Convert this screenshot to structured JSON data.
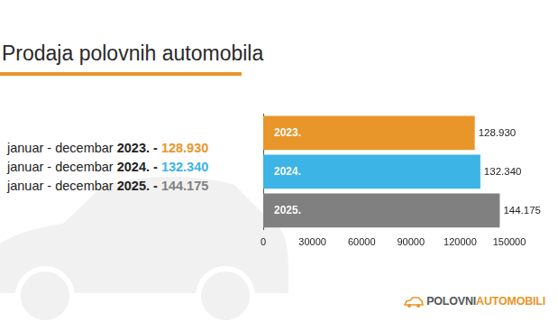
{
  "chart_data": {
    "type": "bar",
    "title": "Prodaja polovnih automobila",
    "orientation": "horizontal",
    "categories": [
      "2023.",
      "2024.",
      "2025."
    ],
    "values": [
      128930,
      132340,
      144175
    ],
    "value_labels": [
      "128.930",
      "132.340",
      "144.175"
    ],
    "colors": [
      "#e8962a",
      "#3cb4e5",
      "#808080"
    ],
    "xlim": [
      0,
      150000
    ],
    "xticks": [
      0,
      30000,
      60000,
      90000,
      120000,
      150000
    ],
    "grid": false,
    "data_labels": true,
    "tick_labels": "x",
    "annotations": [
      {
        "text": "januar - decembar ",
        "bold": "2023. - ",
        "highlight": "128.930",
        "color": "#e8962a"
      },
      {
        "text": "januar - decembar ",
        "bold": "2024. - ",
        "highlight": "132.340",
        "color": "#3cb4e5"
      },
      {
        "text": "januar - decembar ",
        "bold": "2025. - ",
        "highlight": "144.175",
        "color": "#808080"
      }
    ],
    "logo": {
      "text": "POLOVNI",
      "highlight": "AUTOMOBILI"
    }
  }
}
